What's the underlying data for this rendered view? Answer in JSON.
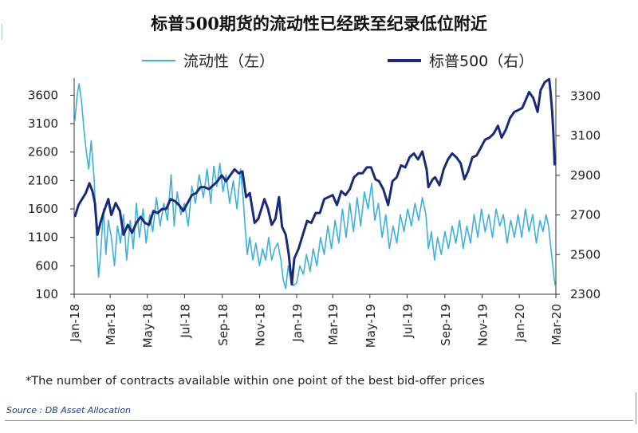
{
  "page": {
    "title": "标普500期货的流动性已经跌至纪录低位附近",
    "footnote": "*The number of contracts available within one point of the best bid-offer prices",
    "source": "Source : DB Asset Allocation"
  },
  "legend": {
    "left_series_label": "流动性（左）",
    "right_series_label": "标普500（右）",
    "left_color": "#3db0dc",
    "right_color": "#1a2a7a"
  },
  "chart_data": {
    "type": "line",
    "title": "标普500期货的流动性已经跌至纪录低位附近",
    "x_range": [
      "2018-01-01",
      "2020-03-01"
    ],
    "x_tick_labels": [
      "Jan-18",
      "Mar-18",
      "May-18",
      "Jul-18",
      "Sep-18",
      "Nov-18",
      "Jan-19",
      "Mar-19",
      "May-19",
      "Jul-19",
      "Sep-19",
      "Nov-19",
      "Jan-20",
      "Mar-20"
    ],
    "y_left": {
      "min": 100,
      "max": 3900,
      "ticks": [
        100,
        600,
        1100,
        1600,
        2100,
        2600,
        3100,
        3600
      ]
    },
    "y_right": {
      "min": 2300,
      "max": 3390,
      "ticks": [
        2300,
        2500,
        2700,
        2900,
        3100,
        3300
      ]
    },
    "grid": false,
    "legend_position": "top",
    "series": [
      {
        "name": "流动性（左）",
        "axis": "left",
        "color": "#3db0dc",
        "points": [
          [
            "2018-01-02",
            3150
          ],
          [
            "2018-01-06",
            3600
          ],
          [
            "2018-01-09",
            3800
          ],
          [
            "2018-01-13",
            3500
          ],
          [
            "2018-01-17",
            3000
          ],
          [
            "2018-01-21",
            2600
          ],
          [
            "2018-01-25",
            2300
          ],
          [
            "2018-01-29",
            2800
          ],
          [
            "2018-02-03",
            2100
          ],
          [
            "2018-02-07",
            1000
          ],
          [
            "2018-02-10",
            400
          ],
          [
            "2018-02-14",
            900
          ],
          [
            "2018-02-18",
            1600
          ],
          [
            "2018-02-22",
            800
          ],
          [
            "2018-02-26",
            1400
          ],
          [
            "2018-03-03",
            1100
          ],
          [
            "2018-03-08",
            600
          ],
          [
            "2018-03-13",
            1300
          ],
          [
            "2018-03-18",
            1000
          ],
          [
            "2018-03-23",
            1500
          ],
          [
            "2018-03-28",
            700
          ],
          [
            "2018-04-03",
            1400
          ],
          [
            "2018-04-08",
            900
          ],
          [
            "2018-04-13",
            1700
          ],
          [
            "2018-04-18",
            1100
          ],
          [
            "2018-04-24",
            1600
          ],
          [
            "2018-04-29",
            1000
          ],
          [
            "2018-05-05",
            1500
          ],
          [
            "2018-05-10",
            1200
          ],
          [
            "2018-05-16",
            1800
          ],
          [
            "2018-05-22",
            1300
          ],
          [
            "2018-05-28",
            1700
          ],
          [
            "2018-06-03",
            1400
          ],
          [
            "2018-06-09",
            2200
          ],
          [
            "2018-06-14",
            1300
          ],
          [
            "2018-06-19",
            1900
          ],
          [
            "2018-06-25",
            1500
          ],
          [
            "2018-07-01",
            1700
          ],
          [
            "2018-07-07",
            1300
          ],
          [
            "2018-07-13",
            2000
          ],
          [
            "2018-07-19",
            1700
          ],
          [
            "2018-07-25",
            2200
          ],
          [
            "2018-08-01",
            1800
          ],
          [
            "2018-08-07",
            2300
          ],
          [
            "2018-08-13",
            1700
          ],
          [
            "2018-08-18",
            2350
          ],
          [
            "2018-08-23",
            2000
          ],
          [
            "2018-08-28",
            2400
          ],
          [
            "2018-09-02",
            1900
          ],
          [
            "2018-09-07",
            2200
          ],
          [
            "2018-09-13",
            1700
          ],
          [
            "2018-09-19",
            2100
          ],
          [
            "2018-09-25",
            1600
          ],
          [
            "2018-10-01",
            2300
          ],
          [
            "2018-10-05",
            1800
          ],
          [
            "2018-10-09",
            1200
          ],
          [
            "2018-10-12",
            800
          ],
          [
            "2018-10-16",
            1100
          ],
          [
            "2018-10-21",
            700
          ],
          [
            "2018-10-26",
            1000
          ],
          [
            "2018-11-01",
            600
          ],
          [
            "2018-11-06",
            900
          ],
          [
            "2018-11-11",
            700
          ],
          [
            "2018-11-16",
            1100
          ],
          [
            "2018-11-21",
            700
          ],
          [
            "2018-11-26",
            900
          ],
          [
            "2018-12-01",
            1000
          ],
          [
            "2018-12-06",
            700
          ],
          [
            "2018-12-10",
            350
          ],
          [
            "2018-12-14",
            200
          ],
          [
            "2018-12-18",
            600
          ],
          [
            "2018-12-22",
            400
          ],
          [
            "2018-12-27",
            250
          ],
          [
            "2019-01-01",
            300
          ],
          [
            "2019-01-06",
            600
          ],
          [
            "2019-01-12",
            450
          ],
          [
            "2019-01-17",
            800
          ],
          [
            "2019-01-23",
            500
          ],
          [
            "2019-01-28",
            900
          ],
          [
            "2019-02-03",
            600
          ],
          [
            "2019-02-09",
            1100
          ],
          [
            "2019-02-15",
            800
          ],
          [
            "2019-02-21",
            1300
          ],
          [
            "2019-02-27",
            900
          ],
          [
            "2019-03-05",
            1400
          ],
          [
            "2019-03-11",
            1000
          ],
          [
            "2019-03-17",
            1600
          ],
          [
            "2019-03-23",
            1100
          ],
          [
            "2019-03-29",
            1700
          ],
          [
            "2019-04-04",
            1200
          ],
          [
            "2019-04-10",
            1800
          ],
          [
            "2019-04-16",
            1300
          ],
          [
            "2019-04-22",
            1900
          ],
          [
            "2019-04-28",
            1600
          ],
          [
            "2019-05-04",
            2050
          ],
          [
            "2019-05-09",
            1400
          ],
          [
            "2019-05-15",
            1700
          ],
          [
            "2019-05-21",
            1100
          ],
          [
            "2019-05-27",
            1500
          ],
          [
            "2019-06-02",
            900
          ],
          [
            "2019-06-08",
            1300
          ],
          [
            "2019-06-14",
            1000
          ],
          [
            "2019-06-20",
            1500
          ],
          [
            "2019-06-26",
            1200
          ],
          [
            "2019-07-02",
            1600
          ],
          [
            "2019-07-08",
            1300
          ],
          [
            "2019-07-14",
            1700
          ],
          [
            "2019-07-20",
            1400
          ],
          [
            "2019-07-26",
            1800
          ],
          [
            "2019-08-01",
            1500
          ],
          [
            "2019-08-05",
            900
          ],
          [
            "2019-08-10",
            1200
          ],
          [
            "2019-08-15",
            700
          ],
          [
            "2019-08-20",
            1100
          ],
          [
            "2019-08-26",
            800
          ],
          [
            "2019-09-01",
            1200
          ],
          [
            "2019-09-07",
            900
          ],
          [
            "2019-09-13",
            1300
          ],
          [
            "2019-09-19",
            1000
          ],
          [
            "2019-09-25",
            1400
          ],
          [
            "2019-10-01",
            900
          ],
          [
            "2019-10-07",
            1300
          ],
          [
            "2019-10-13",
            1000
          ],
          [
            "2019-10-19",
            1500
          ],
          [
            "2019-10-25",
            1100
          ],
          [
            "2019-10-31",
            1600
          ],
          [
            "2019-11-06",
            1200
          ],
          [
            "2019-11-12",
            1500
          ],
          [
            "2019-11-18",
            1100
          ],
          [
            "2019-11-24",
            1600
          ],
          [
            "2019-11-30",
            1300
          ],
          [
            "2019-12-06",
            1500
          ],
          [
            "2019-12-12",
            1000
          ],
          [
            "2019-12-18",
            1400
          ],
          [
            "2019-12-24",
            1100
          ],
          [
            "2019-12-30",
            1500
          ],
          [
            "2020-01-05",
            1100
          ],
          [
            "2020-01-11",
            1600
          ],
          [
            "2020-01-17",
            1200
          ],
          [
            "2020-01-23",
            1500
          ],
          [
            "2020-01-29",
            1000
          ],
          [
            "2020-02-04",
            1400
          ],
          [
            "2020-02-09",
            1200
          ],
          [
            "2020-02-14",
            1500
          ],
          [
            "2020-02-18",
            1300
          ],
          [
            "2020-02-21",
            1000
          ],
          [
            "2020-02-24",
            700
          ],
          [
            "2020-02-27",
            400
          ],
          [
            "2020-02-29",
            250
          ]
        ]
      },
      {
        "name": "标普500（右）",
        "axis": "right",
        "color": "#1a2a7a",
        "points": [
          [
            "2018-01-02",
            2690
          ],
          [
            "2018-01-08",
            2750
          ],
          [
            "2018-01-14",
            2780
          ],
          [
            "2018-01-20",
            2810
          ],
          [
            "2018-01-26",
            2860
          ],
          [
            "2018-01-31",
            2820
          ],
          [
            "2018-02-04",
            2760
          ],
          [
            "2018-02-08",
            2600
          ],
          [
            "2018-02-13",
            2660
          ],
          [
            "2018-02-19",
            2720
          ],
          [
            "2018-02-26",
            2780
          ],
          [
            "2018-03-03",
            2700
          ],
          [
            "2018-03-10",
            2760
          ],
          [
            "2018-03-17",
            2720
          ],
          [
            "2018-03-23",
            2600
          ],
          [
            "2018-03-30",
            2650
          ],
          [
            "2018-04-06",
            2610
          ],
          [
            "2018-04-13",
            2660
          ],
          [
            "2018-04-20",
            2690
          ],
          [
            "2018-04-27",
            2660
          ],
          [
            "2018-05-04",
            2650
          ],
          [
            "2018-05-11",
            2720
          ],
          [
            "2018-05-18",
            2710
          ],
          [
            "2018-05-25",
            2730
          ],
          [
            "2018-06-01",
            2730
          ],
          [
            "2018-06-08",
            2780
          ],
          [
            "2018-06-15",
            2770
          ],
          [
            "2018-06-22",
            2750
          ],
          [
            "2018-06-29",
            2720
          ],
          [
            "2018-07-06",
            2760
          ],
          [
            "2018-07-13",
            2800
          ],
          [
            "2018-07-20",
            2810
          ],
          [
            "2018-07-27",
            2840
          ],
          [
            "2018-08-03",
            2840
          ],
          [
            "2018-08-10",
            2830
          ],
          [
            "2018-08-17",
            2850
          ],
          [
            "2018-08-24",
            2870
          ],
          [
            "2018-08-31",
            2900
          ],
          [
            "2018-09-07",
            2870
          ],
          [
            "2018-09-14",
            2900
          ],
          [
            "2018-09-21",
            2930
          ],
          [
            "2018-09-28",
            2910
          ],
          [
            "2018-10-04",
            2920
          ],
          [
            "2018-10-10",
            2790
          ],
          [
            "2018-10-16",
            2810
          ],
          [
            "2018-10-24",
            2660
          ],
          [
            "2018-10-30",
            2680
          ],
          [
            "2018-11-05",
            2740
          ],
          [
            "2018-11-09",
            2780
          ],
          [
            "2018-11-15",
            2730
          ],
          [
            "2018-11-21",
            2650
          ],
          [
            "2018-11-27",
            2680
          ],
          [
            "2018-12-03",
            2790
          ],
          [
            "2018-12-08",
            2640
          ],
          [
            "2018-12-14",
            2600
          ],
          [
            "2018-12-19",
            2500
          ],
          [
            "2018-12-24",
            2350
          ],
          [
            "2018-12-28",
            2480
          ],
          [
            "2019-01-04",
            2530
          ],
          [
            "2019-01-11",
            2600
          ],
          [
            "2019-01-18",
            2670
          ],
          [
            "2019-01-25",
            2660
          ],
          [
            "2019-02-01",
            2710
          ],
          [
            "2019-02-08",
            2710
          ],
          [
            "2019-02-15",
            2780
          ],
          [
            "2019-02-22",
            2790
          ],
          [
            "2019-03-01",
            2800
          ],
          [
            "2019-03-08",
            2750
          ],
          [
            "2019-03-15",
            2820
          ],
          [
            "2019-03-22",
            2800
          ],
          [
            "2019-03-29",
            2830
          ],
          [
            "2019-04-05",
            2890
          ],
          [
            "2019-04-12",
            2910
          ],
          [
            "2019-04-19",
            2910
          ],
          [
            "2019-04-26",
            2940
          ],
          [
            "2019-05-03",
            2940
          ],
          [
            "2019-05-10",
            2880
          ],
          [
            "2019-05-16",
            2870
          ],
          [
            "2019-05-23",
            2830
          ],
          [
            "2019-05-31",
            2750
          ],
          [
            "2019-06-07",
            2870
          ],
          [
            "2019-06-14",
            2890
          ],
          [
            "2019-06-21",
            2950
          ],
          [
            "2019-06-28",
            2940
          ],
          [
            "2019-07-05",
            2990
          ],
          [
            "2019-07-12",
            3010
          ],
          [
            "2019-07-19",
            2980
          ],
          [
            "2019-07-26",
            3020
          ],
          [
            "2019-08-02",
            2930
          ],
          [
            "2019-08-05",
            2840
          ],
          [
            "2019-08-12",
            2880
          ],
          [
            "2019-08-16",
            2890
          ],
          [
            "2019-08-23",
            2850
          ],
          [
            "2019-08-30",
            2930
          ],
          [
            "2019-09-06",
            2980
          ],
          [
            "2019-09-13",
            3010
          ],
          [
            "2019-09-20",
            2990
          ],
          [
            "2019-09-27",
            2960
          ],
          [
            "2019-10-03",
            2880
          ],
          [
            "2019-10-09",
            2920
          ],
          [
            "2019-10-16",
            2990
          ],
          [
            "2019-10-23",
            3000
          ],
          [
            "2019-10-30",
            3040
          ],
          [
            "2019-11-06",
            3080
          ],
          [
            "2019-11-13",
            3090
          ],
          [
            "2019-11-20",
            3110
          ],
          [
            "2019-11-27",
            3150
          ],
          [
            "2019-12-03",
            3090
          ],
          [
            "2019-12-10",
            3130
          ],
          [
            "2019-12-17",
            3190
          ],
          [
            "2019-12-24",
            3220
          ],
          [
            "2019-12-31",
            3230
          ],
          [
            "2020-01-06",
            3240
          ],
          [
            "2020-01-13",
            3290
          ],
          [
            "2020-01-17",
            3320
          ],
          [
            "2020-01-24",
            3290
          ],
          [
            "2020-01-31",
            3220
          ],
          [
            "2020-02-05",
            3330
          ],
          [
            "2020-02-12",
            3370
          ],
          [
            "2020-02-19",
            3385
          ],
          [
            "2020-02-21",
            3330
          ],
          [
            "2020-02-24",
            3220
          ],
          [
            "2020-02-26",
            3110
          ],
          [
            "2020-02-28",
            2950
          ]
        ]
      }
    ]
  }
}
